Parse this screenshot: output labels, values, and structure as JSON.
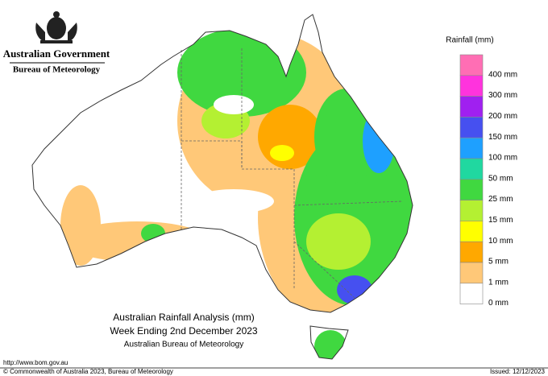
{
  "header": {
    "government": "Australian Government",
    "agency": "Bureau of Meteorology"
  },
  "legend": {
    "title": "Rainfall (mm)",
    "items": [
      {
        "label": "400 mm",
        "color": "#ff6eb4"
      },
      {
        "label": "300 mm",
        "color": "#ff33dd"
      },
      {
        "label": "200 mm",
        "color": "#a020f0"
      },
      {
        "label": "150 mm",
        "color": "#4650f0"
      },
      {
        "label": "100 mm",
        "color": "#1ea0ff"
      },
      {
        "label": "50 mm",
        "color": "#20d8a0"
      },
      {
        "label": "25 mm",
        "color": "#40d840"
      },
      {
        "label": "15 mm",
        "color": "#b4f032"
      },
      {
        "label": "10 mm",
        "color": "#ffff00"
      },
      {
        "label": "5 mm",
        "color": "#ffa800"
      },
      {
        "label": "1 mm",
        "color": "#ffc878"
      },
      {
        "label": "0 mm",
        "color": "#ffffff"
      }
    ]
  },
  "map_title": {
    "line1": "Australian Rainfall Analysis (mm)",
    "line2": "Week Ending 2nd December 2023",
    "line3": "Australian Bureau of Meteorology"
  },
  "footer": {
    "url": "http://www.bom.gov.au",
    "copyright": "© Commonwealth of Australia 2023, Bureau of Meteorology",
    "issued": "Issued: 12/12/2023"
  }
}
